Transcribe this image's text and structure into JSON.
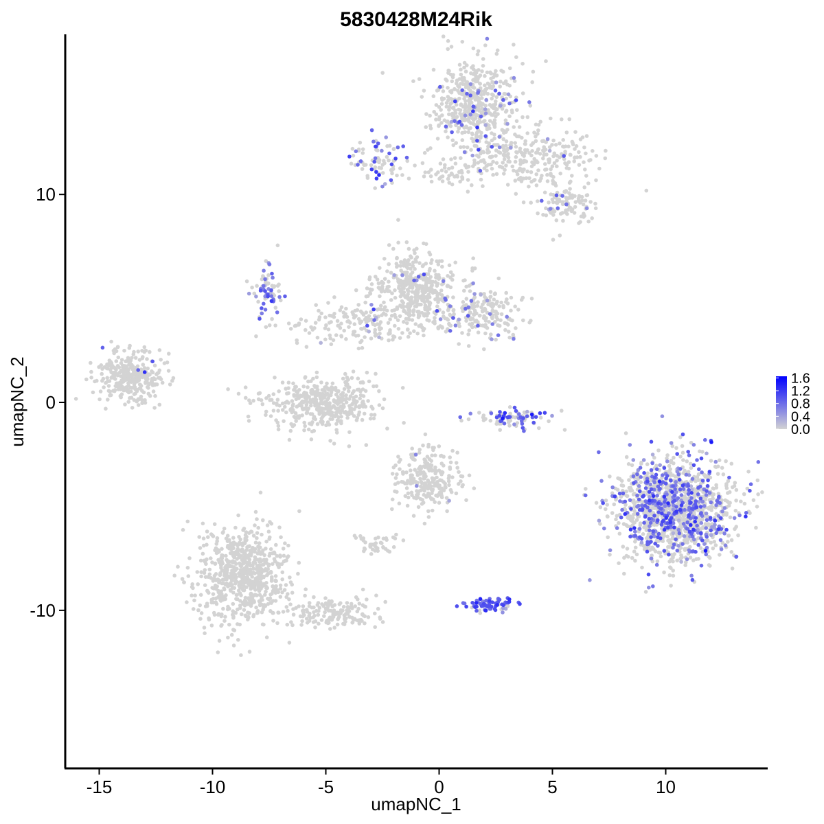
{
  "chart_data": {
    "type": "scatter",
    "title": "5830428M24Rik",
    "xlabel": "umapNC_1",
    "ylabel": "umapNC_2",
    "xlim": [
      -16.5,
      14.5
    ],
    "ylim": [
      -17.6,
      17.7
    ],
    "x_ticks": [
      -15,
      -10,
      -5,
      0,
      5,
      10
    ],
    "x_tick_labels": [
      "-15",
      "-10",
      "-5",
      "0",
      "5",
      "10"
    ],
    "y_ticks": [
      -10,
      0,
      10
    ],
    "y_tick_labels": [
      "-10",
      "0",
      "10"
    ],
    "grid": false,
    "legend_position": "right",
    "color_scale": {
      "low": "#d3d3d3",
      "high": "#0000ff",
      "min": 0.0,
      "max": 1.65,
      "breaks": [
        0.0,
        0.4,
        0.8,
        1.2,
        1.6
      ],
      "break_labels": [
        "0.0",
        "0.4",
        "0.8",
        "1.2",
        "1.6"
      ]
    },
    "point_color_gray": "#d3d3d3",
    "clusters": [
      {
        "name": "top-right-main",
        "cx": 1.7,
        "cy": 14.3,
        "sx": 1.0,
        "sy": 1.1,
        "n": 500,
        "frac": 0.08,
        "expr": 0.7
      },
      {
        "name": "top-right-tail",
        "cx": 4.0,
        "cy": 11.9,
        "sx": 1.5,
        "sy": 0.7,
        "n": 260,
        "frac": 0.03,
        "expr": 0.6
      },
      {
        "name": "top-right-lower",
        "cx": 5.6,
        "cy": 9.7,
        "sx": 0.7,
        "sy": 0.6,
        "n": 110,
        "frac": 0.08,
        "expr": 0.6
      },
      {
        "name": "top-left-small",
        "cx": -2.6,
        "cy": 11.6,
        "sx": 0.6,
        "sy": 0.6,
        "n": 80,
        "frac": 0.35,
        "expr": 0.9
      },
      {
        "name": "top-bridge",
        "cx": 0.8,
        "cy": 11.1,
        "sx": 0.8,
        "sy": 0.3,
        "n": 60,
        "frac": 0.03,
        "expr": 0.6
      },
      {
        "name": "mid-left-ring",
        "cx": -7.6,
        "cy": 5.2,
        "sx": 0.4,
        "sy": 0.6,
        "n": 70,
        "frac": 0.55,
        "expr": 0.7
      },
      {
        "name": "mid-center",
        "cx": -1.0,
        "cy": 5.4,
        "sx": 0.9,
        "sy": 0.9,
        "n": 420,
        "frac": 0.02,
        "expr": 0.6
      },
      {
        "name": "mid-right",
        "cx": 1.9,
        "cy": 4.3,
        "sx": 0.9,
        "sy": 0.6,
        "n": 200,
        "frac": 0.12,
        "expr": 0.7
      },
      {
        "name": "mid-arm",
        "cx": -3.5,
        "cy": 3.9,
        "sx": 1.8,
        "sy": 0.6,
        "n": 170,
        "frac": 0.04,
        "expr": 0.6
      },
      {
        "name": "left-far",
        "cx": -13.6,
        "cy": 1.2,
        "sx": 0.8,
        "sy": 0.6,
        "n": 320,
        "frac": 0.01,
        "expr": 0.7
      },
      {
        "name": "center-left-bowl",
        "cx": -5.2,
        "cy": 0.0,
        "sx": 1.2,
        "sy": 0.6,
        "n": 420,
        "frac": 0.0,
        "expr": 0.0
      },
      {
        "name": "center-arc",
        "cx": 3.2,
        "cy": -0.8,
        "sx": 0.9,
        "sy": 0.25,
        "n": 90,
        "frac": 0.5,
        "expr": 0.9
      },
      {
        "name": "center-lower",
        "cx": -0.5,
        "cy": -3.7,
        "sx": 0.7,
        "sy": 0.8,
        "n": 240,
        "frac": 0.01,
        "expr": 0.6
      },
      {
        "name": "lower-left-big",
        "cx": -8.6,
        "cy": -8.3,
        "sx": 1.0,
        "sy": 1.2,
        "n": 700,
        "frac": 0.0,
        "expr": 0.0
      },
      {
        "name": "lower-left-arm",
        "cx": -4.7,
        "cy": -10.1,
        "sx": 1.0,
        "sy": 0.4,
        "n": 160,
        "frac": 0.0,
        "expr": 0.0
      },
      {
        "name": "small-lower",
        "cx": -2.7,
        "cy": -6.9,
        "sx": 0.4,
        "sy": 0.25,
        "n": 40,
        "frac": 0.0,
        "expr": 0.0
      },
      {
        "name": "lower-center-band",
        "cx": 2.2,
        "cy": -9.7,
        "sx": 0.6,
        "sy": 0.2,
        "n": 80,
        "frac": 0.8,
        "expr": 0.9
      },
      {
        "name": "lower-right-cloud",
        "cx": 10.4,
        "cy": -5.2,
        "sx": 1.3,
        "sy": 1.2,
        "n": 1400,
        "frac": 0.28,
        "expr": 0.8
      }
    ]
  }
}
